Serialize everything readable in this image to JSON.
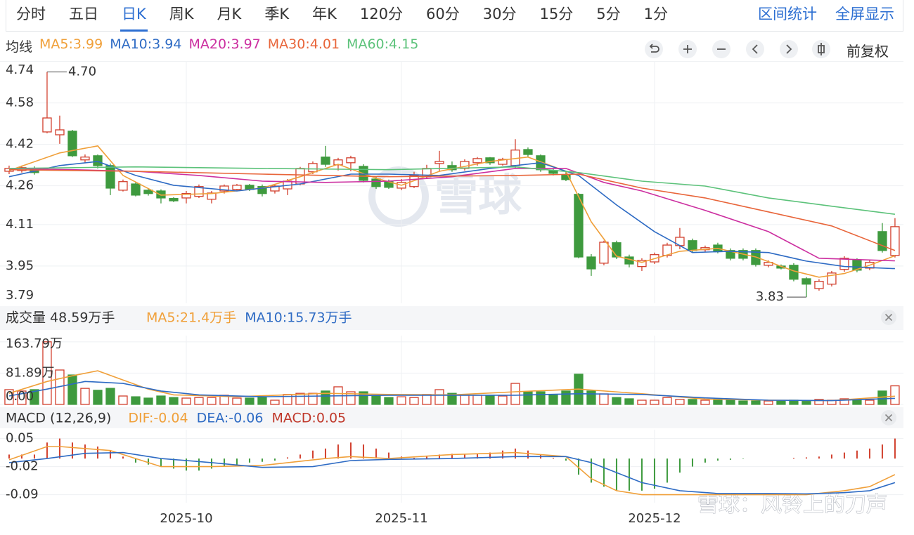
{
  "tabs": [
    "分时",
    "五日",
    "日K",
    "周K",
    "月K",
    "季K",
    "年K",
    "120分",
    "60分",
    "30分",
    "15分",
    "5分",
    "1分"
  ],
  "active_tab": "日K",
  "actions": [
    "区间统计",
    "全屏显示"
  ],
  "footer_watermark": "雪球：风铃上的刀声",
  "chart_data": [
    {
      "type": "candlestick",
      "label": "均线",
      "adjust": "前复权",
      "watermark": "雪球",
      "up_color": "#d2402e",
      "down_color": "#3e9a3e",
      "xlim": [
        -0.72,
        70.67
      ],
      "xticks": [
        {
          "value": 14,
          "label": "2025-10"
        },
        {
          "value": 31,
          "label": "2025-11"
        },
        {
          "value": 51,
          "label": "2025-12"
        }
      ],
      "ylim": [
        3.806,
        4.739
      ],
      "yticks": [
        4.74,
        4.58,
        4.42,
        4.26,
        4.11,
        3.95,
        3.79
      ],
      "grid": true,
      "ohlc": [
        [
          4.316,
          4.338,
          4.305,
          4.327
        ],
        [
          4.319,
          4.338,
          4.311,
          4.33
        ],
        [
          4.327,
          4.335,
          4.303,
          4.311
        ],
        [
          4.468,
          4.7,
          4.463,
          4.522
        ],
        [
          4.457,
          4.531,
          4.422,
          4.476
        ],
        [
          4.471,
          4.476,
          4.371,
          4.376
        ],
        [
          4.36,
          4.381,
          4.349,
          4.371
        ],
        [
          4.376,
          4.381,
          4.327,
          4.338
        ],
        [
          4.338,
          4.346,
          4.224,
          4.251
        ],
        [
          4.243,
          4.284,
          4.238,
          4.276
        ],
        [
          4.267,
          4.273,
          4.219,
          4.224
        ],
        [
          4.243,
          4.251,
          4.222,
          4.23
        ],
        [
          4.24,
          4.246,
          4.192,
          4.213
        ],
        [
          4.211,
          4.216,
          4.197,
          4.202
        ],
        [
          4.213,
          4.24,
          4.192,
          4.23
        ],
        [
          4.219,
          4.265,
          4.213,
          4.257
        ],
        [
          4.208,
          4.24,
          4.192,
          4.232
        ],
        [
          4.24,
          4.265,
          4.23,
          4.259
        ],
        [
          4.246,
          4.267,
          4.24,
          4.262
        ],
        [
          4.262,
          4.267,
          4.24,
          4.246
        ],
        [
          4.257,
          4.265,
          4.219,
          4.23
        ],
        [
          4.24,
          4.267,
          4.23,
          4.259
        ],
        [
          4.248,
          4.286,
          4.224,
          4.278
        ],
        [
          4.267,
          4.333,
          4.262,
          4.327
        ],
        [
          4.314,
          4.354,
          4.305,
          4.346
        ],
        [
          4.371,
          4.414,
          4.333,
          4.343
        ],
        [
          4.341,
          4.368,
          4.319,
          4.36
        ],
        [
          4.349,
          4.376,
          4.316,
          4.368
        ],
        [
          4.335,
          4.343,
          4.273,
          4.281
        ],
        [
          4.286,
          4.295,
          4.248,
          4.257
        ],
        [
          4.276,
          4.284,
          4.248,
          4.254
        ],
        [
          4.251,
          4.286,
          4.243,
          4.273
        ],
        [
          4.257,
          4.314,
          4.251,
          4.3
        ],
        [
          4.295,
          4.341,
          4.286,
          4.327
        ],
        [
          4.346,
          4.395,
          4.314,
          4.354
        ],
        [
          4.338,
          4.354,
          4.314,
          4.322
        ],
        [
          4.327,
          4.362,
          4.319,
          4.354
        ],
        [
          4.349,
          4.371,
          4.338,
          4.365
        ],
        [
          4.368,
          4.371,
          4.341,
          4.349
        ],
        [
          4.343,
          4.368,
          4.338,
          4.362
        ],
        [
          4.338,
          4.44,
          4.327,
          4.398
        ],
        [
          4.4,
          4.408,
          4.373,
          4.381
        ],
        [
          4.376,
          4.381,
          4.314,
          4.322
        ],
        [
          4.319,
          4.327,
          4.3,
          4.308
        ],
        [
          4.303,
          4.314,
          4.278,
          4.284
        ],
        [
          4.227,
          4.232,
          3.98,
          3.985
        ],
        [
          3.985,
          3.996,
          3.912,
          3.939
        ],
        [
          3.961,
          4.048,
          3.953,
          4.042
        ],
        [
          4.04,
          4.048,
          3.977,
          3.985
        ],
        [
          3.985,
          3.994,
          3.945,
          3.958
        ],
        [
          3.948,
          3.98,
          3.931,
          3.972
        ],
        [
          3.966,
          4.002,
          3.958,
          3.994
        ],
        [
          3.991,
          4.04,
          3.983,
          4.031
        ],
        [
          4.029,
          4.097,
          4.015,
          4.061
        ],
        [
          4.048,
          4.056,
          4.002,
          4.01
        ],
        [
          4.013,
          4.029,
          4.004,
          4.021
        ],
        [
          4.031,
          4.04,
          3.999,
          4.007
        ],
        [
          4.01,
          4.018,
          3.972,
          3.98
        ],
        [
          4.01,
          4.018,
          3.972,
          3.98
        ],
        [
          4.01,
          4.018,
          3.948,
          3.956
        ],
        [
          3.953,
          3.972,
          3.945,
          3.964
        ],
        [
          3.95,
          3.956,
          3.937,
          3.942
        ],
        [
          3.953,
          3.961,
          3.891,
          3.899
        ],
        [
          3.901,
          3.907,
          3.83,
          3.88
        ],
        [
          3.863,
          3.899,
          3.855,
          3.891
        ],
        [
          3.88,
          3.931,
          3.871,
          3.923
        ],
        [
          3.937,
          3.988,
          3.928,
          3.98
        ],
        [
          3.972,
          3.98,
          3.926,
          3.934
        ],
        [
          3.942,
          3.972,
          3.934,
          3.964
        ],
        [
          4.083,
          4.116,
          4.002,
          4.01
        ],
        [
          3.991,
          4.135,
          3.983,
          4.102
        ]
      ],
      "annotations": [
        {
          "text": "4.70",
          "index": 3,
          "value": 4.7
        },
        {
          "text": "3.83",
          "index": 63,
          "value": 3.83
        }
      ],
      "series": [
        {
          "name": "MA5:3.99",
          "color": "#f0a03a",
          "x": [
            0,
            4,
            7,
            9,
            12,
            16,
            20,
            23,
            26,
            29,
            31,
            34,
            38,
            41,
            44,
            46,
            48,
            50,
            53,
            56,
            59,
            62,
            64,
            66,
            68,
            70
          ],
          "values": [
            4.319,
            4.387,
            4.414,
            4.3,
            4.224,
            4.23,
            4.251,
            4.295,
            4.343,
            4.289,
            4.262,
            4.316,
            4.354,
            4.371,
            4.316,
            4.121,
            3.988,
            3.964,
            4.007,
            4.018,
            3.985,
            3.931,
            3.907,
            3.921,
            3.953,
            3.99
          ]
        },
        {
          "name": "MA10:3.94",
          "color": "#2e6bc4",
          "x": [
            0,
            4,
            7,
            10,
            13,
            18,
            23,
            27,
            30,
            34,
            38,
            42,
            45,
            48,
            51,
            54,
            57,
            60,
            63,
            66,
            70
          ],
          "values": [
            4.295,
            4.338,
            4.354,
            4.3,
            4.262,
            4.24,
            4.267,
            4.305,
            4.305,
            4.3,
            4.327,
            4.349,
            4.3,
            4.186,
            4.083,
            4.002,
            4.007,
            4.002,
            3.969,
            3.948,
            3.94
          ]
        },
        {
          "name": "MA20:3.97",
          "color": "#cc2fa0",
          "x": [
            0,
            5,
            10,
            15,
            20,
            25,
            30,
            35,
            40,
            44,
            47,
            50,
            55,
            60,
            64,
            67,
            70
          ],
          "values": [
            4.327,
            4.322,
            4.316,
            4.3,
            4.278,
            4.273,
            4.278,
            4.295,
            4.327,
            4.327,
            4.273,
            4.24,
            4.165,
            4.083,
            3.98,
            3.975,
            3.97
          ]
        },
        {
          "name": "MA30:4.01",
          "color": "#e8653a",
          "x": [
            0,
            10,
            20,
            30,
            40,
            45,
            50,
            55,
            60,
            65,
            70
          ],
          "values": [
            4.322,
            4.316,
            4.305,
            4.295,
            4.3,
            4.305,
            4.251,
            4.213,
            4.159,
            4.105,
            4.01
          ]
        },
        {
          "name": "MA60:4.15",
          "color": "#5cc27a",
          "x": [
            0,
            10,
            20,
            30,
            40,
            45,
            50,
            55,
            60,
            65,
            70
          ],
          "values": [
            4.327,
            4.333,
            4.327,
            4.322,
            4.333,
            4.311,
            4.278,
            4.259,
            4.213,
            4.181,
            4.15
          ]
        }
      ]
    },
    {
      "type": "volume",
      "title": "成交量 48.59万手",
      "ylim": [
        0,
        180
      ],
      "yticks": [
        {
          "value": 163.79,
          "label": "163.79万"
        },
        {
          "value": 81.89,
          "label": "81.89万"
        },
        {
          "value": 0,
          "label": "0.00"
        }
      ],
      "values": [
        38.6,
        35,
        38.6,
        163.79,
        90,
        77,
        42,
        37,
        42,
        22,
        20,
        16.5,
        22,
        18,
        16.5,
        18,
        18,
        24,
        16.5,
        16.5,
        18,
        11,
        26,
        29,
        29,
        35,
        46,
        33,
        33,
        24,
        18,
        20,
        18,
        26,
        38.6,
        29,
        24,
        24,
        24,
        22,
        55,
        33,
        33,
        24,
        35,
        79,
        35,
        27.6,
        18,
        14.7,
        11,
        11,
        18,
        13,
        13,
        11,
        11,
        11,
        9,
        9,
        9,
        9,
        11,
        9,
        13,
        11,
        14.7,
        11,
        11,
        35,
        48.59
      ],
      "series": [
        {
          "name": "MA5:21.4万手",
          "color": "#f0a03a",
          "x": [
            0,
            3,
            5,
            7,
            9,
            11,
            13,
            18,
            25,
            30,
            35,
            40,
            45,
            50,
            55,
            60,
            65,
            70
          ],
          "values": [
            29,
            60,
            75,
            88,
            64,
            40,
            25,
            20,
            29,
            26,
            25,
            33,
            40,
            28,
            14,
            11,
            10,
            21.4
          ]
        },
        {
          "name": "MA10:15.73万手",
          "color": "#2e6bc4",
          "x": [
            0,
            3,
            6,
            9,
            12,
            15,
            20,
            30,
            40,
            45,
            50,
            55,
            60,
            65,
            70
          ],
          "values": [
            22,
            40,
            60,
            55,
            35,
            25,
            20,
            24,
            24,
            28,
            26,
            17,
            11,
            10,
            15.73
          ]
        }
      ]
    },
    {
      "type": "macd",
      "title": "MACD (12,26,9)",
      "histogram_label": "MACD:0.05",
      "histogram_color": "#c0392b",
      "ylim": [
        -0.11,
        0.072
      ],
      "yticks": [
        0.05,
        -0.02,
        -0.09
      ],
      "values": [
        0.01,
        0.01,
        0.01,
        0.04,
        0.05,
        0.04,
        0.035,
        0.03,
        0.02,
        0.005,
        -0.01,
        -0.015,
        -0.02,
        -0.025,
        -0.03,
        -0.03,
        -0.025,
        -0.02,
        -0.015,
        -0.01,
        -0.008,
        -0.005,
        0.003,
        0.01,
        0.02,
        0.025,
        0.035,
        0.04,
        0.035,
        0.025,
        0.015,
        0.005,
        0.002,
        0.005,
        0.01,
        0.012,
        0.01,
        0.012,
        0.015,
        0.02,
        0.025,
        0.02,
        0.01,
        0.002,
        -0.005,
        -0.04,
        -0.06,
        -0.07,
        -0.08,
        -0.08,
        -0.08,
        -0.075,
        -0.06,
        -0.035,
        -0.02,
        -0.01,
        -0.005,
        -0.003,
        -0.001,
        0,
        0,
        0,
        0.002,
        0.003,
        0.005,
        0.01,
        0.015,
        0.02,
        0.025,
        0.035,
        0.05
      ],
      "series": [
        {
          "name": "DIF:-0.04",
          "color": "#f0a03a",
          "x": [
            0,
            3,
            4,
            8,
            10,
            12,
            16,
            20,
            25,
            27,
            30,
            35,
            40,
            44,
            46,
            48,
            50,
            53,
            56,
            60,
            63,
            66,
            68,
            70
          ],
          "values": [
            -0.003,
            0.03,
            0.03,
            0.02,
            0,
            -0.02,
            -0.02,
            -0.017,
            0,
            0.005,
            0,
            0.01,
            0.015,
            0.005,
            -0.05,
            -0.08,
            -0.09,
            -0.09,
            -0.09,
            -0.09,
            -0.09,
            -0.08,
            -0.07,
            -0.04
          ]
        },
        {
          "name": "DEA:-0.06",
          "color": "#2e6bc4",
          "x": [
            0,
            3,
            6,
            9,
            12,
            16,
            20,
            24,
            27,
            30,
            35,
            40,
            44,
            46,
            48,
            50,
            53,
            56,
            60,
            63,
            66,
            68,
            70
          ],
          "values": [
            -0.01,
            0,
            0.013,
            0.015,
            0,
            -0.01,
            -0.022,
            -0.02,
            -0.005,
            -0.002,
            0,
            0.005,
            0.005,
            -0.01,
            -0.035,
            -0.06,
            -0.08,
            -0.087,
            -0.087,
            -0.088,
            -0.085,
            -0.08,
            -0.06
          ]
        }
      ]
    }
  ]
}
